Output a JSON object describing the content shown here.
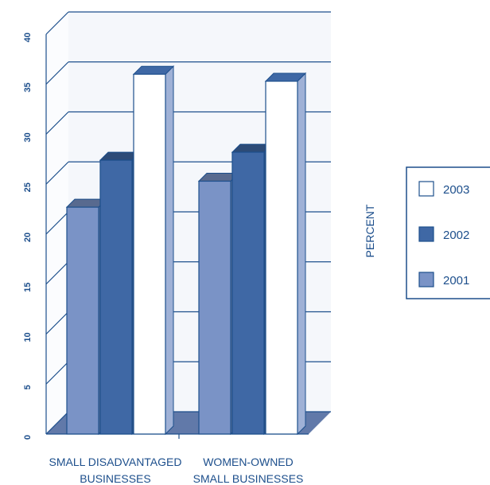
{
  "chart_data": {
    "type": "bar",
    "ylabel": "PERCENT",
    "ylim": [
      0,
      40
    ],
    "yticks": [
      "0",
      "5",
      "10",
      "15",
      "20",
      "25",
      "30",
      "35",
      "40"
    ],
    "categories": [
      "SMALL DISADVANTAGED BUSINESSES",
      "WOMEN-OWNED SMALL BUSINESSES"
    ],
    "category_lines": [
      [
        "SMALL DISADVANTAGED",
        "BUSINESSES"
      ],
      [
        "WOMEN-OWNED",
        "SMALL BUSINESSES"
      ]
    ],
    "series": [
      {
        "name": "2001",
        "values": [
          22.7,
          25.3
        ],
        "color": "#7a93c6"
      },
      {
        "name": "2002",
        "values": [
          27.4,
          28.2
        ],
        "color": "#3f68a5"
      },
      {
        "name": "2003",
        "values": [
          36.0,
          35.3
        ],
        "color": "#ffffff"
      }
    ],
    "legend_order": [
      "2003",
      "2002",
      "2001"
    ],
    "legend_position": "right",
    "grid": true,
    "style": "3d"
  }
}
